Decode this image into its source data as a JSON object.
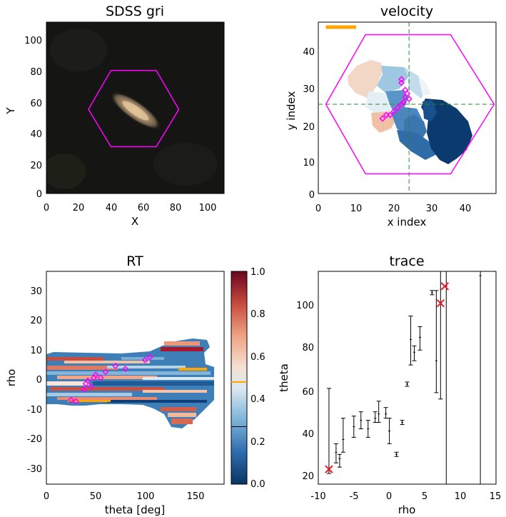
{
  "panels": {
    "sdss": {
      "title": "SDSS gri",
      "xlabel": "X",
      "ylabel": "Y",
      "xlim": [
        0,
        110
      ],
      "ylim": [
        0,
        110
      ],
      "xticks": [
        "0",
        "20",
        "40",
        "60",
        "80",
        "100"
      ],
      "yticks": [
        "0",
        "20",
        "40",
        "60",
        "80",
        "100"
      ]
    },
    "velocity": {
      "title": "velocity",
      "xlabel": "x index",
      "ylabel": "y index",
      "xlim": [
        0,
        47
      ],
      "ylim": [
        -1,
        47
      ],
      "xticks": [
        "0",
        "10",
        "20",
        "30",
        "40"
      ],
      "yticks": [
        "0",
        "10",
        "20",
        "30",
        "40"
      ]
    },
    "rt": {
      "title": "RT",
      "xlabel": "theta [deg]",
      "ylabel": "rho",
      "xlim": [
        0,
        180
      ],
      "ylim": [
        -36,
        36
      ],
      "xticks": [
        "0",
        "50",
        "100",
        "150"
      ],
      "yticks": [
        "-30",
        "-20",
        "-10",
        "0",
        "10",
        "20",
        "30"
      ],
      "colorbar_ticks": [
        "0.0",
        "0.2",
        "0.4",
        "0.6",
        "0.8",
        "1.0"
      ]
    },
    "trace": {
      "title": "trace",
      "xlabel": "rho",
      "ylabel": "theta",
      "xlim": [
        -10,
        15
      ],
      "ylim": [
        15,
        115
      ],
      "xticks": [
        "-10",
        "-5",
        "0",
        "5",
        "10",
        "15"
      ],
      "yticks": [
        "20",
        "40",
        "60",
        "80",
        "100"
      ]
    }
  },
  "colors": {
    "hexagon": "#ff00ff",
    "marker": "#ff3399",
    "orange": "#ffa500",
    "guide": "#2a8a2a",
    "cross": "#e8202a"
  },
  "chart_data": [
    {
      "type": "scatter",
      "name": "SDSS gri",
      "hexagon": [
        [
          26,
          54
        ],
        [
          40,
          79
        ],
        [
          68,
          79
        ],
        [
          82,
          54
        ],
        [
          68,
          30
        ],
        [
          40,
          30
        ]
      ]
    },
    {
      "type": "heatmap",
      "name": "velocity",
      "hexagon": [
        [
          2,
          24
        ],
        [
          12.5,
          4.5
        ],
        [
          35,
          4.5
        ],
        [
          46.5,
          24
        ],
        [
          35,
          43.5
        ],
        [
          12.5,
          43.5
        ]
      ],
      "guides": {
        "x": 24,
        "y": 24
      },
      "scale_bar": [
        [
          2,
          45.6
        ],
        [
          10,
          45.6
        ]
      ],
      "markers": [
        [
          17,
          20
        ],
        [
          18,
          21
        ],
        [
          19,
          21
        ],
        [
          20,
          22
        ],
        [
          21,
          23
        ],
        [
          22,
          24
        ],
        [
          22.5,
          24.5
        ],
        [
          23,
          26
        ],
        [
          23.5,
          27
        ],
        [
          24,
          25.5
        ],
        [
          23,
          28
        ],
        [
          22,
          30
        ],
        [
          22,
          31
        ]
      ]
    },
    {
      "type": "heatmap",
      "name": "RT",
      "colorbar_marks": [
        0.27,
        0.48
      ],
      "markers": [
        [
          25,
          -7.5
        ],
        [
          30,
          -8
        ],
        [
          38,
          -4
        ],
        [
          40,
          -2
        ],
        [
          42,
          -1
        ],
        [
          45,
          -3
        ],
        [
          48,
          0
        ],
        [
          50,
          1
        ],
        [
          55,
          0
        ],
        [
          60,
          2
        ],
        [
          70,
          4
        ],
        [
          80,
          3
        ],
        [
          100,
          6
        ],
        [
          105,
          7
        ]
      ]
    },
    {
      "type": "scatter",
      "name": "trace",
      "errorbars": [
        [
          -8.5,
          22,
          20,
          60
        ],
        [
          -7.5,
          30,
          25,
          34
        ],
        [
          -7,
          27,
          23,
          29
        ],
        [
          -6.5,
          36,
          30,
          46
        ],
        [
          -5,
          42,
          37,
          47
        ],
        [
          -4,
          45,
          41,
          49
        ],
        [
          -3,
          41,
          37,
          45
        ],
        [
          -2,
          46,
          44,
          49
        ],
        [
          -1.5,
          48,
          44,
          54
        ],
        [
          -0.5,
          48,
          46,
          51
        ],
        [
          0,
          40,
          34,
          46
        ],
        [
          1,
          29,
          28,
          30
        ],
        [
          1.8,
          44,
          43,
          45
        ],
        [
          2.5,
          62,
          61,
          63
        ],
        [
          3,
          83,
          71,
          94
        ],
        [
          3.5,
          77,
          73,
          80
        ],
        [
          4.3,
          84,
          78,
          89
        ],
        [
          6,
          105,
          104,
          106
        ],
        [
          6.6,
          73,
          58,
          106
        ],
        [
          7.2,
          100,
          55,
          116
        ],
        [
          8,
          108,
          0,
          116
        ],
        [
          12.8,
          113,
          0,
          116
        ]
      ],
      "crosses": [
        [
          -8.5,
          22
        ],
        [
          7.2,
          100
        ],
        [
          7.8,
          108
        ]
      ]
    }
  ]
}
